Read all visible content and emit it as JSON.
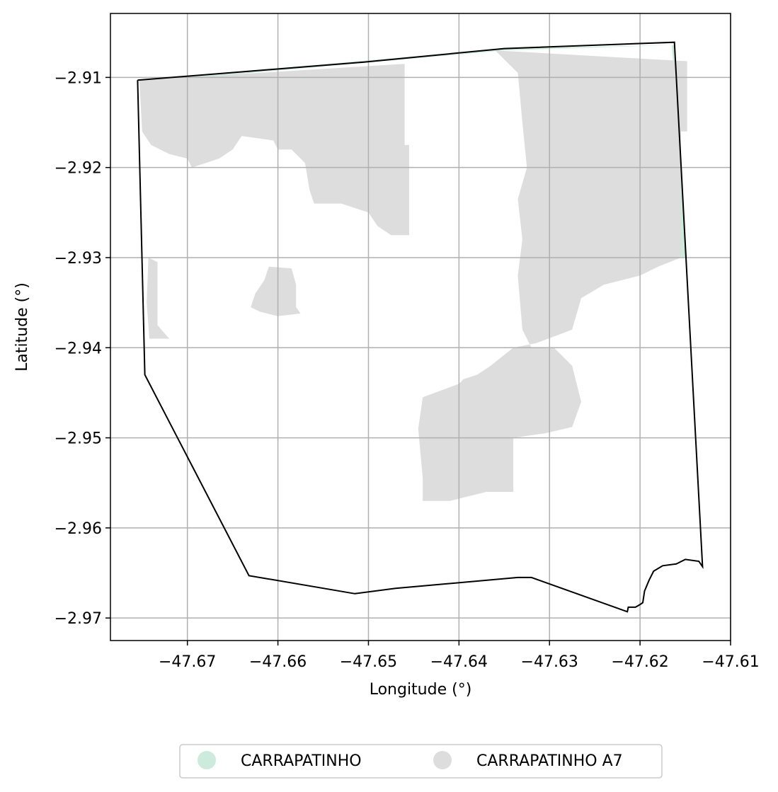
{
  "chart_data": {
    "type": "map",
    "xlabel": "Longitude (°)",
    "ylabel": "Latitude (°)",
    "xlim": [
      -47.6785,
      -47.61
    ],
    "ylim": [
      -2.9725,
      -2.9029
    ],
    "xticks": [
      -47.67,
      -47.66,
      -47.65,
      -47.64,
      -47.63,
      -47.62,
      -47.61
    ],
    "yticks": [
      -2.91,
      -2.92,
      -2.93,
      -2.94,
      -2.95,
      -2.96,
      -2.97
    ],
    "xtick_labels": [
      "−47.67",
      "−47.66",
      "−47.65",
      "−47.64",
      "−47.63",
      "−47.62",
      "−47.61"
    ],
    "ytick_labels": [
      "−2.91",
      "−2.92",
      "−2.93",
      "−2.94",
      "−2.95",
      "−2.96",
      "−2.97"
    ],
    "grid": true,
    "legend_position": "bottom-center",
    "legend": [
      {
        "label": "CARRAPATINHO",
        "color": "#cdebdd"
      },
      {
        "label": "CARRAPATINHO A7",
        "color": "#dddddd"
      }
    ],
    "boundary": [
      [
        -47.6755,
        -2.9103
      ],
      [
        -47.6505,
        -2.9083
      ],
      [
        -47.635,
        -2.9068
      ],
      [
        -47.6162,
        -2.9061
      ],
      [
        -47.6131,
        -2.9643
      ],
      [
        -47.6135,
        -2.9637
      ],
      [
        -47.615,
        -2.9635
      ],
      [
        -47.616,
        -2.964
      ],
      [
        -47.6175,
        -2.9642
      ],
      [
        -47.6185,
        -2.9648
      ],
      [
        -47.619,
        -2.9658
      ],
      [
        -47.6195,
        -2.967
      ],
      [
        -47.6197,
        -2.9683
      ],
      [
        -47.62,
        -2.9685
      ],
      [
        -47.6205,
        -2.9688
      ],
      [
        -47.6213,
        -2.9688
      ],
      [
        -47.6214,
        -2.9693
      ],
      [
        -47.632,
        -2.9655
      ],
      [
        -47.6335,
        -2.9655
      ],
      [
        -47.647,
        -2.9667
      ],
      [
        -47.6515,
        -2.9673
      ],
      [
        -47.6632,
        -2.9653
      ],
      [
        -47.6747,
        -2.943
      ],
      [
        -47.6755,
        -2.9103
      ]
    ],
    "regions": [
      {
        "name": "CARRAPATINHO",
        "polygon": [
          [
            -47.6753,
            -2.9103
          ],
          [
            -47.635,
            -2.9068
          ],
          [
            -47.6165,
            -2.9064
          ],
          [
            -47.6148,
            -2.93
          ],
          [
            -47.6155,
            -2.93
          ],
          [
            -47.6162,
            -2.9064
          ],
          [
            -47.635,
            -2.907
          ],
          [
            -47.6753,
            -2.9106
          ]
        ]
      },
      {
        "name": "CARRAPATINHO A7",
        "polygon": [
          [
            -47.6753,
            -2.9103
          ],
          [
            -47.646,
            -2.9085
          ],
          [
            -47.646,
            -2.9175
          ],
          [
            -47.6455,
            -2.9175
          ],
          [
            -47.6455,
            -2.9275
          ],
          [
            -47.6475,
            -2.9275
          ],
          [
            -47.649,
            -2.9265
          ],
          [
            -47.65,
            -2.925
          ],
          [
            -47.653,
            -2.924
          ],
          [
            -47.656,
            -2.924
          ],
          [
            -47.6565,
            -2.9225
          ],
          [
            -47.657,
            -2.9195
          ],
          [
            -47.6585,
            -2.918
          ],
          [
            -47.66,
            -2.918
          ],
          [
            -47.6605,
            -2.917
          ],
          [
            -47.664,
            -2.9165
          ],
          [
            -47.665,
            -2.918
          ],
          [
            -47.6665,
            -2.919
          ],
          [
            -47.6695,
            -2.92
          ],
          [
            -47.67,
            -2.919
          ],
          [
            -47.672,
            -2.9185
          ],
          [
            -47.674,
            -2.9175
          ],
          [
            -47.675,
            -2.916
          ],
          [
            -47.6753,
            -2.9103
          ]
        ]
      },
      {
        "name": "CARRAPATINHO A7",
        "polygon": [
          [
            -47.636,
            -2.907
          ],
          [
            -47.6148,
            -2.9082
          ],
          [
            -47.6148,
            -2.916
          ],
          [
            -47.6155,
            -2.916
          ],
          [
            -47.6155,
            -2.93
          ],
          [
            -47.618,
            -2.931
          ],
          [
            -47.62,
            -2.932
          ],
          [
            -47.624,
            -2.933
          ],
          [
            -47.6265,
            -2.9345
          ],
          [
            -47.6275,
            -2.938
          ],
          [
            -47.6315,
            -2.9395
          ],
          [
            -47.634,
            -2.94
          ],
          [
            -47.6365,
            -2.942
          ],
          [
            -47.638,
            -2.943
          ],
          [
            -47.6395,
            -2.9435
          ],
          [
            -47.64,
            -2.944
          ],
          [
            -47.644,
            -2.9455
          ],
          [
            -47.6445,
            -2.949
          ],
          [
            -47.644,
            -2.9545
          ],
          [
            -47.644,
            -2.957
          ],
          [
            -47.641,
            -2.957
          ],
          [
            -47.637,
            -2.956
          ],
          [
            -47.634,
            -2.956
          ],
          [
            -47.634,
            -2.95
          ],
          [
            -47.6305,
            -2.9495
          ],
          [
            -47.6275,
            -2.9488
          ],
          [
            -47.6265,
            -2.946
          ],
          [
            -47.6275,
            -2.942
          ],
          [
            -47.6295,
            -2.94
          ],
          [
            -47.632,
            -2.94
          ],
          [
            -47.633,
            -2.938
          ],
          [
            -47.6335,
            -2.932
          ],
          [
            -47.633,
            -2.928
          ],
          [
            -47.6335,
            -2.9235
          ],
          [
            -47.6325,
            -2.92
          ],
          [
            -47.633,
            -2.915
          ],
          [
            -47.6335,
            -2.9095
          ],
          [
            -47.636,
            -2.907
          ]
        ]
      },
      {
        "name": "CARRAPATINHO A7",
        "polygon": [
          [
            -47.661,
            -2.931
          ],
          [
            -47.6585,
            -2.9312
          ],
          [
            -47.658,
            -2.933
          ],
          [
            -47.658,
            -2.9355
          ],
          [
            -47.6575,
            -2.9362
          ],
          [
            -47.66,
            -2.9365
          ],
          [
            -47.662,
            -2.936
          ],
          [
            -47.663,
            -2.9355
          ],
          [
            -47.6625,
            -2.934
          ],
          [
            -47.6615,
            -2.9325
          ],
          [
            -47.661,
            -2.931
          ]
        ]
      },
      {
        "name": "CARRAPATINHO A7",
        "polygon": [
          [
            -47.6743,
            -2.93
          ],
          [
            -47.6733,
            -2.9305
          ],
          [
            -47.6733,
            -2.9375
          ],
          [
            -47.672,
            -2.939
          ],
          [
            -47.6742,
            -2.939
          ],
          [
            -47.6745,
            -2.935
          ],
          [
            -47.6743,
            -2.93
          ]
        ]
      }
    ]
  }
}
